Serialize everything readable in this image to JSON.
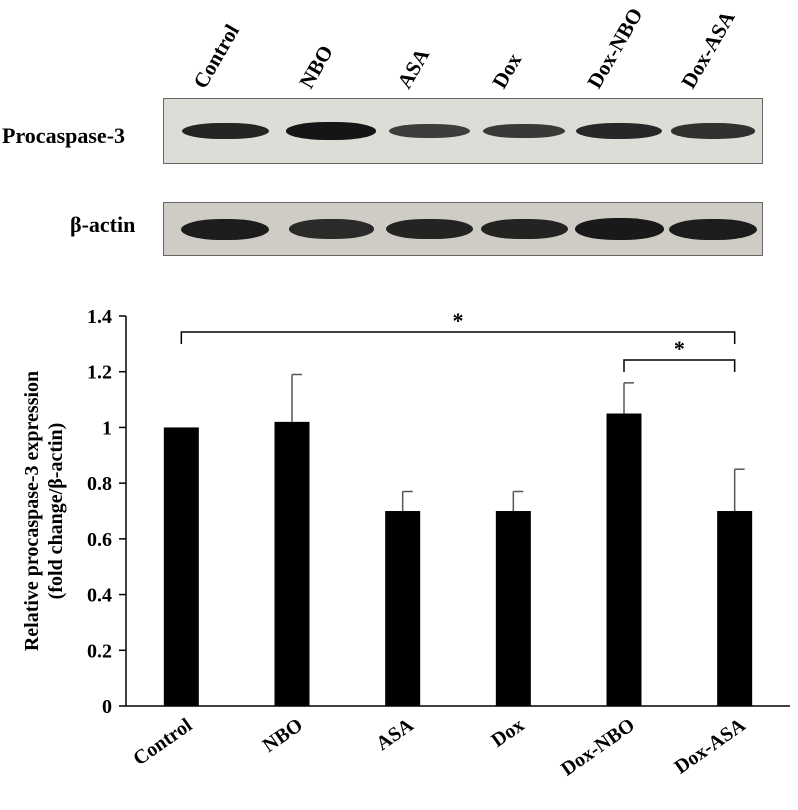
{
  "blot": {
    "lanes": [
      "Control",
      "NBO",
      "ASA",
      "Dox",
      "Dox-NBO",
      "Dox-ASA"
    ],
    "rows": [
      {
        "label": "Procaspase-3",
        "band_intensity": [
          0.85,
          1.0,
          0.55,
          0.6,
          0.8,
          0.7
        ]
      },
      {
        "label": "β-actin",
        "band_intensity": [
          0.9,
          0.75,
          0.85,
          0.85,
          0.95,
          0.9
        ]
      }
    ]
  },
  "chart_data": {
    "type": "bar",
    "categories": [
      "Control",
      "NBO",
      "ASA",
      "Dox",
      "Dox-NBO",
      "Dox-ASA"
    ],
    "values": [
      1.0,
      1.02,
      0.7,
      0.7,
      1.05,
      0.7
    ],
    "errors": [
      0.0,
      0.17,
      0.07,
      0.07,
      0.11,
      0.15
    ],
    "ylabel": "Relative procaspase-3 expression",
    "ylabel2": "(fold change/β-actin)",
    "ylim": [
      0,
      1.4
    ],
    "yticks": [
      0,
      0.2,
      0.4,
      0.6,
      0.8,
      1,
      1.2,
      1.4
    ],
    "ytick_labels": [
      "0",
      "0.2",
      "0.4",
      "0.6",
      "0.8",
      "1",
      "1.2",
      "1.4"
    ],
    "bar_color": "#000000",
    "grid": false,
    "significance": [
      {
        "from": "Control",
        "to": "Dox-ASA",
        "label": "*"
      },
      {
        "from": "Dox-NBO",
        "to": "Dox-ASA",
        "label": "*"
      }
    ]
  }
}
